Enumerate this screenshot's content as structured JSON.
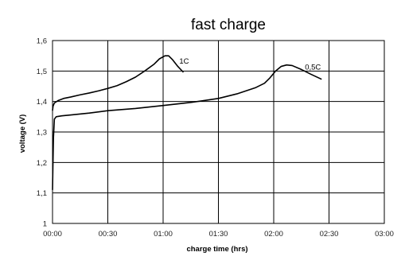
{
  "chart_data": {
    "type": "line",
    "title": "fast charge",
    "xlabel": "charge time (hrs)",
    "ylabel": "voltage (V)",
    "x_unit": "minutes",
    "xlim": [
      0,
      180
    ],
    "ylim": [
      1.0,
      1.6
    ],
    "x_ticks": [
      {
        "value": 0,
        "label": "00:00"
      },
      {
        "value": 30,
        "label": "00:30"
      },
      {
        "value": 60,
        "label": "01:00"
      },
      {
        "value": 90,
        "label": "01:30"
      },
      {
        "value": 120,
        "label": "02:00"
      },
      {
        "value": 150,
        "label": "02:30"
      },
      {
        "value": 180,
        "label": "03:00"
      }
    ],
    "y_ticks": [
      {
        "value": 1.0,
        "label": "1"
      },
      {
        "value": 1.1,
        "label": "1,1"
      },
      {
        "value": 1.2,
        "label": "1,2"
      },
      {
        "value": 1.3,
        "label": "1,3"
      },
      {
        "value": 1.4,
        "label": "1,4"
      },
      {
        "value": 1.5,
        "label": "1,5"
      },
      {
        "value": 1.6,
        "label": "1,6"
      }
    ],
    "grid": true,
    "legend": "none",
    "series": [
      {
        "name": "1C",
        "color": "#000000",
        "points": [
          [
            0,
            1.37
          ],
          [
            0.3,
            1.385
          ],
          [
            1,
            1.395
          ],
          [
            3,
            1.403
          ],
          [
            6,
            1.41
          ],
          [
            10,
            1.415
          ],
          [
            15,
            1.422
          ],
          [
            20,
            1.428
          ],
          [
            25,
            1.435
          ],
          [
            30,
            1.443
          ],
          [
            35,
            1.452
          ],
          [
            40,
            1.465
          ],
          [
            45,
            1.48
          ],
          [
            50,
            1.5
          ],
          [
            55,
            1.522
          ],
          [
            58,
            1.54
          ],
          [
            61,
            1.55
          ],
          [
            63,
            1.55
          ],
          [
            65,
            1.538
          ],
          [
            68,
            1.515
          ],
          [
            71,
            1.496
          ]
        ]
      },
      {
        "name": "0,5C",
        "color": "#000000",
        "points": [
          [
            0,
            1.11
          ],
          [
            0.2,
            1.18
          ],
          [
            0.5,
            1.28
          ],
          [
            1,
            1.342
          ],
          [
            2,
            1.35
          ],
          [
            5,
            1.353
          ],
          [
            10,
            1.356
          ],
          [
            20,
            1.362
          ],
          [
            30,
            1.37
          ],
          [
            45,
            1.377
          ],
          [
            60,
            1.387
          ],
          [
            75,
            1.397
          ],
          [
            90,
            1.41
          ],
          [
            100,
            1.425
          ],
          [
            110,
            1.445
          ],
          [
            115,
            1.46
          ],
          [
            118,
            1.478
          ],
          [
            121,
            1.5
          ],
          [
            124,
            1.515
          ],
          [
            127,
            1.52
          ],
          [
            130,
            1.518
          ],
          [
            135,
            1.505
          ],
          [
            140,
            1.49
          ],
          [
            146,
            1.473
          ]
        ]
      }
    ]
  }
}
